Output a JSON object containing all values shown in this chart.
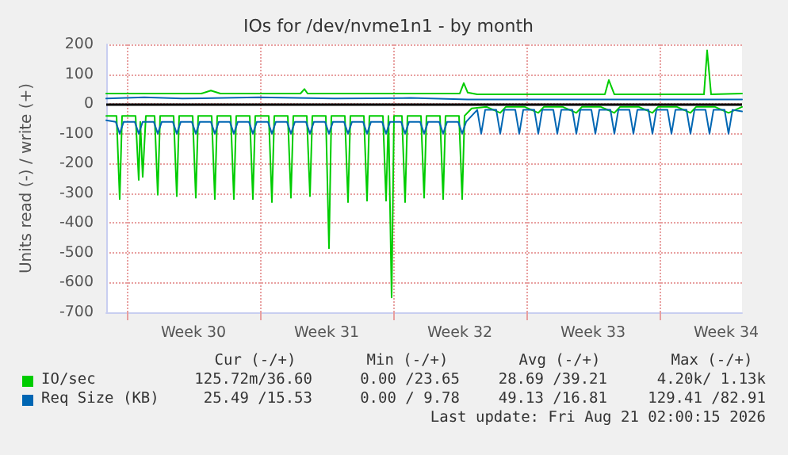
{
  "chart_data": {
    "type": "line",
    "title": "IOs for /dev/nvme1n1 - by month",
    "ylabel": "Units read (-) / write (+)",
    "xlim": [
      "2026-07-18T22:00",
      "2026-08-21T08:00"
    ],
    "xticks": [
      {
        "value": "2026-07-20T00:00",
        "label": null
      },
      {
        "value": "2026-07-23T12:00",
        "label": "Week 30"
      },
      {
        "value": "2026-07-27T00:00",
        "label": null
      },
      {
        "value": "2026-07-30T12:00",
        "label": "Week 31"
      },
      {
        "value": "2026-08-03T00:00",
        "label": null
      },
      {
        "value": "2026-08-06T12:00",
        "label": "Week 32"
      },
      {
        "value": "2026-08-10T00:00",
        "label": null
      },
      {
        "value": "2026-08-13T12:00",
        "label": "Week 33"
      },
      {
        "value": "2026-08-17T00:00",
        "label": null
      },
      {
        "value": "2026-08-20T12:00",
        "label": "Week 34"
      }
    ],
    "ylim": [
      -700,
      200
    ],
    "yticks": [
      -700,
      -600,
      -500,
      -400,
      -300,
      -200,
      -100,
      0,
      100,
      200
    ],
    "grid": true,
    "legend": "bottom",
    "marker": "none",
    "line_style": "solid",
    "ref_lines": [
      {
        "axis": "y",
        "value": 0,
        "color": "#000000"
      }
    ],
    "series": [
      {
        "name": "IO/sec",
        "color": "#00cc00",
        "x": [
          "2026-07-18T22:00",
          "2026-07-19T11:00",
          "2026-07-19T15:00",
          "2026-07-19T18:00",
          "2026-07-20T11:00",
          "2026-07-20T15:00",
          "2026-07-20T17:00",
          "2026-07-20T20:00",
          "2026-07-21T00:00",
          "2026-07-21T11:00",
          "2026-07-21T15:00",
          "2026-07-21T18:00",
          "2026-07-22T11:00",
          "2026-07-22T15:00",
          "2026-07-22T18:00",
          "2026-07-23T11:00",
          "2026-07-23T15:00",
          "2026-07-23T18:00",
          "2026-07-24T11:00",
          "2026-07-24T15:00",
          "2026-07-24T18:00",
          "2026-07-25T11:00",
          "2026-07-25T15:00",
          "2026-07-25T18:00",
          "2026-07-26T11:00",
          "2026-07-26T15:00",
          "2026-07-26T18:00",
          "2026-07-27T11:00",
          "2026-07-27T15:00",
          "2026-07-27T18:00",
          "2026-07-28T11:00",
          "2026-07-28T15:00",
          "2026-07-28T18:00",
          "2026-07-29T11:00",
          "2026-07-29T15:00",
          "2026-07-29T18:00",
          "2026-07-30T11:00",
          "2026-07-30T15:00",
          "2026-07-30T18:00",
          "2026-07-31T11:00",
          "2026-07-31T15:00",
          "2026-07-31T18:00",
          "2026-08-01T11:00",
          "2026-08-01T15:00",
          "2026-08-01T18:00",
          "2026-08-02T11:00",
          "2026-08-02T15:00",
          "2026-08-02T18:00",
          "2026-08-02T22:00",
          "2026-08-03T01:00",
          "2026-08-03T11:00",
          "2026-08-03T15:00",
          "2026-08-03T18:00",
          "2026-08-04T11:00",
          "2026-08-04T15:00",
          "2026-08-04T18:00",
          "2026-08-05T11:00",
          "2026-08-05T15:00",
          "2026-08-05T18:00",
          "2026-08-06T11:00",
          "2026-08-06T15:00",
          "2026-08-06T18:00",
          "2026-08-07T03:00",
          "2026-08-07T22:00",
          "2026-08-08T15:00",
          "2026-08-08T22:00",
          "2026-08-09T22:00",
          "2026-08-10T15:00",
          "2026-08-10T22:00",
          "2026-08-11T22:00",
          "2026-08-12T15:00",
          "2026-08-12T22:00",
          "2026-08-13T22:00",
          "2026-08-14T15:00",
          "2026-08-14T22:00",
          "2026-08-15T22:00",
          "2026-08-16T15:00",
          "2026-08-16T22:00",
          "2026-08-17T22:00",
          "2026-08-18T15:00",
          "2026-08-18T22:00",
          "2026-08-19T22:00",
          "2026-08-20T15:00",
          "2026-08-21T08:00"
        ],
        "values": [
          -40,
          -40,
          -320,
          -40,
          -40,
          -255,
          -60,
          -245,
          -40,
          -40,
          -305,
          -40,
          -40,
          -310,
          -40,
          -40,
          -315,
          -40,
          -40,
          -320,
          -40,
          -40,
          -320,
          -40,
          -40,
          -320,
          -40,
          -40,
          -330,
          -40,
          -40,
          -315,
          -40,
          -40,
          -310,
          -40,
          -40,
          -485,
          -40,
          -40,
          -330,
          -40,
          -40,
          -325,
          -40,
          -40,
          -325,
          -40,
          -650,
          -40,
          -40,
          -330,
          -40,
          -40,
          -315,
          -40,
          -40,
          -320,
          -40,
          -40,
          -320,
          -40,
          -15,
          -10,
          -30,
          -10,
          -10,
          -30,
          -10,
          -10,
          -30,
          -10,
          -10,
          -30,
          -10,
          -10,
          -30,
          -10,
          -10,
          -30,
          -10,
          -10,
          -30,
          -10
        ]
      },
      {
        "color": "#00cc00",
        "x": [
          "2026-07-18T22:00",
          "2026-07-23T22:00",
          "2026-07-24T10:00",
          "2026-07-24T22:00",
          "2026-07-29T03:00",
          "2026-07-29T08:00",
          "2026-07-29T12:00",
          "2026-08-06T12:00",
          "2026-08-06T17:00",
          "2026-08-06T22:00",
          "2026-08-07T10:00",
          "2026-08-14T03:00",
          "2026-08-14T08:00",
          "2026-08-14T15:00",
          "2026-08-19T08:00",
          "2026-08-19T12:00",
          "2026-08-19T17:00",
          "2026-08-21T08:00"
        ],
        "values": [
          35,
          35,
          45,
          35,
          35,
          50,
          35,
          35,
          70,
          38,
          32,
          32,
          80,
          32,
          32,
          180,
          32,
          35
        ]
      },
      {
        "name": "Req Size (KB)",
        "color": "#0066b3",
        "x": [
          "2026-07-18T22:00",
          "2026-07-19T10:00",
          "2026-07-19T15:00",
          "2026-07-19T20:00",
          "2026-07-20T10:00",
          "2026-07-20T15:00",
          "2026-07-20T20:00",
          "2026-07-21T10:00",
          "2026-07-21T15:00",
          "2026-07-21T20:00",
          "2026-07-22T10:00",
          "2026-07-22T15:00",
          "2026-07-22T20:00",
          "2026-07-23T10:00",
          "2026-07-23T15:00",
          "2026-07-23T20:00",
          "2026-07-24T10:00",
          "2026-07-24T15:00",
          "2026-07-24T20:00",
          "2026-07-25T10:00",
          "2026-07-25T15:00",
          "2026-07-25T20:00",
          "2026-07-26T10:00",
          "2026-07-26T15:00",
          "2026-07-26T20:00",
          "2026-07-27T10:00",
          "2026-07-27T15:00",
          "2026-07-27T20:00",
          "2026-07-28T10:00",
          "2026-07-28T15:00",
          "2026-07-28T20:00",
          "2026-07-29T10:00",
          "2026-07-29T15:00",
          "2026-07-29T20:00",
          "2026-07-30T10:00",
          "2026-07-30T15:00",
          "2026-07-30T20:00",
          "2026-07-31T10:00",
          "2026-07-31T15:00",
          "2026-07-31T20:00",
          "2026-08-01T10:00",
          "2026-08-01T15:00",
          "2026-08-01T20:00",
          "2026-08-02T10:00",
          "2026-08-02T15:00",
          "2026-08-02T20:00",
          "2026-08-03T10:00",
          "2026-08-03T15:00",
          "2026-08-03T20:00",
          "2026-08-04T10:00",
          "2026-08-04T15:00",
          "2026-08-04T20:00",
          "2026-08-05T10:00",
          "2026-08-05T15:00",
          "2026-08-05T20:00",
          "2026-08-06T10:00",
          "2026-08-06T15:00",
          "2026-08-06T20:00",
          "2026-08-07T10:00",
          "2026-08-07T15:00",
          "2026-08-07T20:00",
          "2026-08-08T10:00",
          "2026-08-08T15:00",
          "2026-08-08T20:00",
          "2026-08-09T10:00",
          "2026-08-09T15:00",
          "2026-08-09T20:00",
          "2026-08-10T10:00",
          "2026-08-10T15:00",
          "2026-08-10T20:00",
          "2026-08-11T10:00",
          "2026-08-11T15:00",
          "2026-08-11T20:00",
          "2026-08-12T10:00",
          "2026-08-12T15:00",
          "2026-08-12T20:00",
          "2026-08-13T10:00",
          "2026-08-13T15:00",
          "2026-08-13T20:00",
          "2026-08-14T10:00",
          "2026-08-14T15:00",
          "2026-08-14T20:00",
          "2026-08-15T10:00",
          "2026-08-15T15:00",
          "2026-08-15T20:00",
          "2026-08-16T10:00",
          "2026-08-16T15:00",
          "2026-08-16T20:00",
          "2026-08-17T10:00",
          "2026-08-17T15:00",
          "2026-08-17T20:00",
          "2026-08-18T10:00",
          "2026-08-18T15:00",
          "2026-08-18T20:00",
          "2026-08-19T10:00",
          "2026-08-19T15:00",
          "2026-08-19T20:00",
          "2026-08-20T10:00",
          "2026-08-20T15:00",
          "2026-08-20T20:00",
          "2026-08-21T08:00"
        ],
        "values": [
          -55,
          -60,
          -100,
          -60,
          -60,
          -100,
          -60,
          -60,
          -100,
          -60,
          -60,
          -100,
          -60,
          -60,
          -100,
          -60,
          -60,
          -100,
          -60,
          -60,
          -100,
          -60,
          -60,
          -100,
          -60,
          -60,
          -100,
          -60,
          -60,
          -100,
          -60,
          -60,
          -100,
          -60,
          -60,
          -100,
          -60,
          -60,
          -100,
          -60,
          -60,
          -100,
          -60,
          -60,
          -100,
          -60,
          -60,
          -100,
          -60,
          -60,
          -100,
          -60,
          -60,
          -100,
          -60,
          -60,
          -100,
          -60,
          -20,
          -100,
          -20,
          -20,
          -100,
          -20,
          -20,
          -100,
          -20,
          -20,
          -100,
          -20,
          -20,
          -100,
          -20,
          -20,
          -100,
          -20,
          -20,
          -100,
          -20,
          -20,
          -100,
          -20,
          -20,
          -100,
          -20,
          -20,
          -100,
          -20,
          -20,
          -100,
          -20,
          -20,
          -100,
          -20,
          -20,
          -100,
          -20,
          -20,
          -100,
          -20,
          -25
        ]
      },
      {
        "color": "#0066b3",
        "x": [
          "2026-07-18T22:00",
          "2026-07-20T22:00",
          "2026-07-22T22:00",
          "2026-07-26T22:00",
          "2026-07-30T22:00",
          "2026-08-03T22:00",
          "2026-08-06T22:00",
          "2026-08-21T08:00"
        ],
        "values": [
          18,
          22,
          18,
          22,
          18,
          20,
          15,
          15
        ]
      }
    ],
    "annotations": [
      "Cur (-/+)",
      "Min (-/+)",
      "Avg (-/+)",
      "Max (-/+)",
      "125.72m/36.60",
      "0.00 /23.65",
      "28.69 /39.21",
      "4.20k/ 1.13k",
      "25.49 /15.53",
      "0.00 / 9.78",
      "49.13 /16.81",
      "129.41 /82.91",
      "Last update: Fri Aug 21 02:00:15 2026"
    ]
  }
}
